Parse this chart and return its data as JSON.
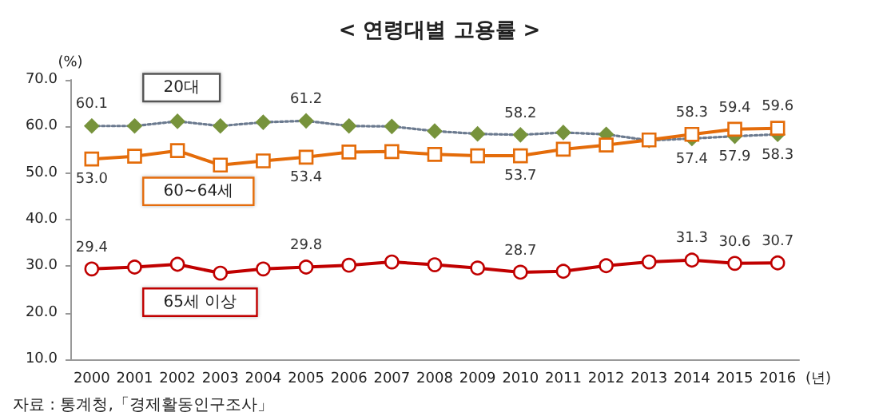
{
  "chart_data": {
    "type": "line",
    "title": "< 연령대별 고용률 >",
    "ylabel": "(%)",
    "xlabel": "(년)",
    "annotations": [
      "자료 : 통계청,「경제활동인구조사」"
    ],
    "categories": [
      "2000",
      "2001",
      "2002",
      "2003",
      "2004",
      "2005",
      "2006",
      "2007",
      "2008",
      "2009",
      "2010",
      "2011",
      "2012",
      "2013",
      "2014",
      "2015",
      "2016"
    ],
    "ylim": [
      10,
      70
    ],
    "yticks": [
      {
        "value": 10,
        "label": "10.0"
      },
      {
        "value": 20,
        "label": "20.0"
      },
      {
        "value": 30,
        "label": "30.0"
      },
      {
        "value": 40,
        "label": "40.0"
      },
      {
        "value": 50,
        "label": "50.0"
      },
      {
        "value": 60,
        "label": "60.0"
      },
      {
        "value": 70,
        "label": "70.0"
      }
    ],
    "grid": false,
    "legend": false,
    "series": [
      {
        "name": "20대",
        "color": "#77933c",
        "marker": "diamond",
        "line_style": "dotted",
        "values": [
          60.1,
          60.1,
          61.1,
          60.1,
          60.9,
          61.2,
          60.1,
          60.0,
          59.0,
          58.4,
          58.2,
          58.7,
          58.3,
          57.0,
          57.4,
          57.9,
          58.3
        ],
        "value_labels": [
          "60.1",
          null,
          null,
          null,
          null,
          "61.2",
          null,
          null,
          null,
          null,
          "58.2",
          null,
          null,
          null,
          "57.4",
          "57.9",
          "58.3"
        ]
      },
      {
        "name": "60~64세",
        "color": "#e46c0a",
        "marker": "square",
        "line_style": "solid",
        "values": [
          53.0,
          53.6,
          54.8,
          51.7,
          52.6,
          53.4,
          54.5,
          54.6,
          54.0,
          53.7,
          53.7,
          55.1,
          56.0,
          57.1,
          58.3,
          59.4,
          59.6
        ],
        "value_labels": [
          "53.0",
          null,
          null,
          null,
          null,
          "53.4",
          null,
          null,
          null,
          null,
          "53.7",
          null,
          null,
          null,
          "58.3",
          "59.4",
          "59.6"
        ]
      },
      {
        "name": "65세 이상",
        "color": "#c00000",
        "marker": "circle",
        "line_style": "solid",
        "values": [
          29.4,
          29.8,
          30.4,
          28.5,
          29.4,
          29.8,
          30.2,
          30.9,
          30.3,
          29.6,
          28.7,
          28.9,
          30.1,
          30.9,
          31.3,
          30.6,
          30.7
        ],
        "value_labels": [
          "29.4",
          null,
          null,
          null,
          null,
          "29.8",
          null,
          null,
          null,
          null,
          "28.7",
          null,
          null,
          null,
          "31.3",
          "30.6",
          "30.7"
        ]
      }
    ]
  }
}
